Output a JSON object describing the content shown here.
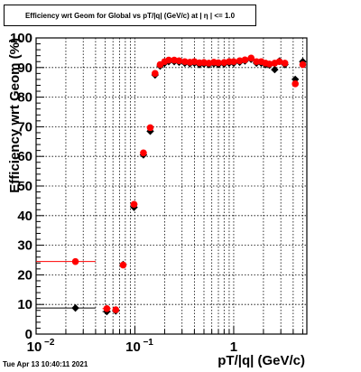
{
  "title": "Efficiency wrt Geom for Global vs pT/|q| (GeV/c) at |  η  | <= 1.0",
  "timestamp": "Tue Apr 13 10:40:11 2021",
  "chart_data": {
    "type": "scatter",
    "title": "Efficiency wrt Geom for Global vs pT/|q| (GeV/c) at |  η  | <= 1.0",
    "xlabel": "pT/|q| (GeV/c)",
    "ylabel": "Efficiency wrt Geom (%)",
    "xscale": "log",
    "xlim": [
      0.01,
      5.5
    ],
    "ylim": [
      0,
      100
    ],
    "grid": true,
    "x_tick_labels": [
      {
        "value": 0.01,
        "base": "10",
        "exp": "−2"
      },
      {
        "value": 0.1,
        "base": "10",
        "exp": "−1"
      },
      {
        "value": 1,
        "base": "1",
        "exp": ""
      }
    ],
    "y_ticks": [
      0,
      10,
      20,
      30,
      40,
      50,
      60,
      70,
      80,
      90,
      100
    ],
    "series": [
      {
        "color": "#000000",
        "marker": "diamond",
        "points": [
          {
            "x": 0.025,
            "y": 8.8,
            "xerr": [
              0.01,
              0.04
            ]
          },
          {
            "x": 0.052,
            "y": 7.6,
            "xerr": [
              0.047,
              0.057
            ]
          },
          {
            "x": 0.064,
            "y": 7.8
          },
          {
            "x": 0.076,
            "y": 23.5
          },
          {
            "x": 0.098,
            "y": 42.8,
            "xerr": [
              0.09,
              0.106
            ]
          },
          {
            "x": 0.122,
            "y": 60.5
          },
          {
            "x": 0.143,
            "y": 68.5
          },
          {
            "x": 0.16,
            "y": 87.5
          },
          {
            "x": 0.18,
            "y": 90.5
          },
          {
            "x": 0.2,
            "y": 91.5
          },
          {
            "x": 0.22,
            "y": 92.0
          },
          {
            "x": 0.25,
            "y": 92.0
          },
          {
            "x": 0.28,
            "y": 91.8
          },
          {
            "x": 0.32,
            "y": 91.5
          },
          {
            "x": 0.36,
            "y": 91.3
          },
          {
            "x": 0.4,
            "y": 91.5
          },
          {
            "x": 0.45,
            "y": 91.0
          },
          {
            "x": 0.5,
            "y": 91.2
          },
          {
            "x": 0.56,
            "y": 91.0
          },
          {
            "x": 0.63,
            "y": 91.3
          },
          {
            "x": 0.7,
            "y": 91.0
          },
          {
            "x": 0.8,
            "y": 91.2
          },
          {
            "x": 0.9,
            "y": 91.5
          },
          {
            "x": 1.0,
            "y": 91.5
          },
          {
            "x": 1.15,
            "y": 91.8
          },
          {
            "x": 1.3,
            "y": 92.2
          },
          {
            "x": 1.5,
            "y": 92.8
          },
          {
            "x": 1.7,
            "y": 91.5
          },
          {
            "x": 1.9,
            "y": 91.5
          },
          {
            "x": 2.1,
            "y": 91.0
          },
          {
            "x": 2.3,
            "y": 90.8
          },
          {
            "x": 2.6,
            "y": 89.3
          },
          {
            "x": 2.9,
            "y": 92.2
          },
          {
            "x": 3.3,
            "y": 91.0
          },
          {
            "x": 4.2,
            "y": 86.0
          },
          {
            "x": 5.0,
            "y": 92.0
          }
        ]
      },
      {
        "color": "#ff0000",
        "marker": "circle",
        "points": [
          {
            "x": 0.025,
            "y": 24.5,
            "xerr": [
              0.01,
              0.04
            ]
          },
          {
            "x": 0.052,
            "y": 8.6,
            "xerr": [
              0.047,
              0.057
            ]
          },
          {
            "x": 0.064,
            "y": 8.2
          },
          {
            "x": 0.076,
            "y": 23.3
          },
          {
            "x": 0.098,
            "y": 43.8,
            "xerr": [
              0.09,
              0.106
            ]
          },
          {
            "x": 0.122,
            "y": 61.2
          },
          {
            "x": 0.143,
            "y": 69.7
          },
          {
            "x": 0.16,
            "y": 88.0
          },
          {
            "x": 0.18,
            "y": 91.0
          },
          {
            "x": 0.2,
            "y": 92.0
          },
          {
            "x": 0.22,
            "y": 92.5
          },
          {
            "x": 0.25,
            "y": 92.5
          },
          {
            "x": 0.28,
            "y": 92.3
          },
          {
            "x": 0.32,
            "y": 92.0
          },
          {
            "x": 0.36,
            "y": 91.8
          },
          {
            "x": 0.4,
            "y": 92.0
          },
          {
            "x": 0.45,
            "y": 91.6
          },
          {
            "x": 0.5,
            "y": 91.7
          },
          {
            "x": 0.56,
            "y": 91.5
          },
          {
            "x": 0.63,
            "y": 91.8
          },
          {
            "x": 0.7,
            "y": 91.6
          },
          {
            "x": 0.8,
            "y": 91.7
          },
          {
            "x": 0.9,
            "y": 92.0
          },
          {
            "x": 1.0,
            "y": 92.0
          },
          {
            "x": 1.15,
            "y": 92.3
          },
          {
            "x": 1.3,
            "y": 92.6
          },
          {
            "x": 1.5,
            "y": 93.2
          },
          {
            "x": 1.7,
            "y": 92.0
          },
          {
            "x": 1.9,
            "y": 92.0
          },
          {
            "x": 2.1,
            "y": 91.5
          },
          {
            "x": 2.3,
            "y": 91.2
          },
          {
            "x": 2.6,
            "y": 91.5
          },
          {
            "x": 2.9,
            "y": 92.0
          },
          {
            "x": 3.3,
            "y": 91.5
          },
          {
            "x": 4.2,
            "y": 84.5
          },
          {
            "x": 5.0,
            "y": 91.0
          }
        ]
      }
    ]
  }
}
